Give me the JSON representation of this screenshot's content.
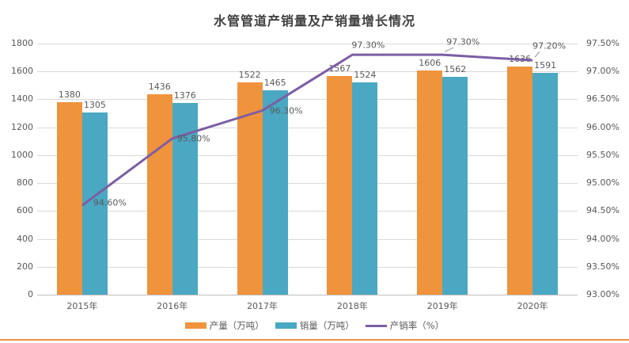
{
  "title": "水管管道产销量及产销量增长情况",
  "chart_data": {
    "type": "bar",
    "title": "水管管道产销量及产销量增长情况",
    "categories": [
      "2015年",
      "2016年",
      "2017年",
      "2018年",
      "2019年",
      "2020年"
    ],
    "series": [
      {
        "name": "产量（万吨）",
        "type": "bar",
        "color": "#F0933D",
        "values": [
          1380,
          1436,
          1522,
          1567,
          1606,
          1636
        ]
      },
      {
        "name": "销量（万吨）",
        "type": "bar",
        "color": "#4AA8C2",
        "values": [
          1305,
          1376,
          1465,
          1524,
          1562,
          1591
        ]
      },
      {
        "name": "产销率（%）",
        "type": "line",
        "color": "#7B5EA5",
        "axis": "right",
        "values": [
          94.6,
          95.8,
          96.3,
          97.3,
          97.3,
          97.2
        ],
        "point_labels": [
          "94.60%",
          "95.80%",
          "96.30%",
          "97.30%",
          "97.30%",
          "97.20%"
        ]
      }
    ],
    "left_axis": {
      "min": 0,
      "max": 1800,
      "step": 200,
      "ticks": [
        "0",
        "200",
        "400",
        "600",
        "800",
        "1000",
        "1200",
        "1400",
        "1600",
        "1800"
      ]
    },
    "right_axis": {
      "min": 93,
      "max": 97.5,
      "step": 0.5,
      "ticks": [
        "93.00%",
        "93.50%",
        "94.00%",
        "94.50%",
        "95.00%",
        "95.50%",
        "96.00%",
        "96.50%",
        "97.00%",
        "97.50%"
      ]
    },
    "legend_position": "bottom",
    "grid": true
  },
  "colors": {
    "gridline": "#D9D9D9",
    "axis_line": "#BFBFBF",
    "text": "#595959",
    "title_text": "#404040",
    "leader_line": "#969696",
    "bottom_rule": "#ED9249"
  }
}
